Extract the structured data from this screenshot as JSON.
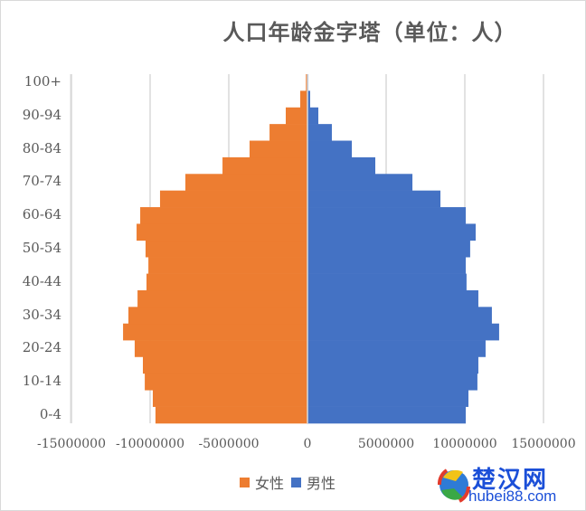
{
  "chart_data": {
    "type": "bar",
    "orientation": "horizontal",
    "title": "人口年龄金字塔（单位：人）",
    "xlabel": "",
    "ylabel": "",
    "xlim": [
      -15000000,
      15000000
    ],
    "x_ticks": [
      "-15000000",
      "-10000000",
      "-5000000",
      "0",
      "5000000",
      "10000000",
      "15000000"
    ],
    "x_tick_values": [
      -15000000,
      -10000000,
      -5000000,
      0,
      5000000,
      10000000,
      15000000
    ],
    "y_tick_labels_shown": [
      "0-4",
      "10-14",
      "20-24",
      "30-34",
      "40-44",
      "50-54",
      "60-64",
      "70-74",
      "80-84",
      "90-94",
      "100+"
    ],
    "categories": [
      "0-4",
      "5-9",
      "10-14",
      "15-19",
      "20-24",
      "25-29",
      "30-34",
      "35-39",
      "40-44",
      "45-49",
      "50-54",
      "55-59",
      "60-64",
      "65-69",
      "70-74",
      "75-79",
      "80-84",
      "85-89",
      "90-94",
      "95-99",
      "100+"
    ],
    "series": [
      {
        "name": "女性",
        "color": "#ED7D31",
        "values": [
          -9660000,
          -9830000,
          -10340000,
          -10460000,
          -10980000,
          -11720000,
          -11380000,
          -10800000,
          -10230000,
          -10110000,
          -10290000,
          -10860000,
          -10630000,
          -9370000,
          -7760000,
          -5400000,
          -3680000,
          -2410000,
          -1380000,
          -460000,
          -100000
        ]
      },
      {
        "name": "男性",
        "color": "#4472C4",
        "values": [
          10060000,
          10230000,
          10800000,
          10860000,
          11320000,
          12180000,
          11720000,
          10860000,
          10110000,
          10060000,
          10340000,
          10690000,
          10060000,
          8450000,
          6670000,
          4310000,
          2820000,
          1550000,
          690000,
          170000,
          50000
        ]
      }
    ],
    "grid": true,
    "legend_position": "bottom"
  },
  "legend": {
    "female": "女性",
    "male": "男性",
    "female_color": "#ED7D31",
    "male_color": "#4472C4"
  },
  "watermark": {
    "cn": "楚汉网",
    "en": "hubei88.com"
  }
}
